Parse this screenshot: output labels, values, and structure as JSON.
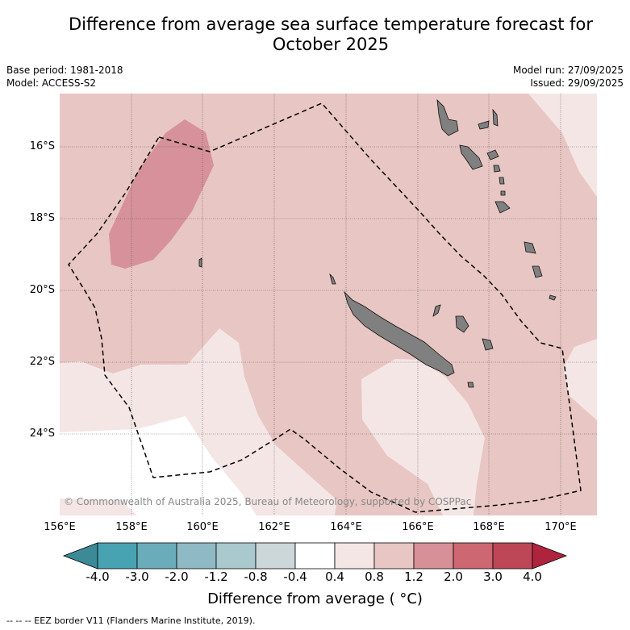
{
  "title_line1": "Difference from average sea surface temperature forecast for",
  "title_line2": "October 2025",
  "base_period": "Base period: 1981-2018",
  "model": "Model: ACCESS-S2",
  "model_run": "Model run: 27/09/2025",
  "issued": "Issued: 29/09/2025",
  "copyright": "© Commonwealth of Australia 2025, Bureau of Meteorology, supported by COSPPac",
  "latitudes": [
    "16°S",
    "18°S",
    "20°S",
    "22°S",
    "24°S"
  ],
  "longitudes": [
    "156°E",
    "158°E",
    "160°E",
    "162°E",
    "164°E",
    "166°E",
    "168°E",
    "170°E"
  ],
  "colorbar": {
    "title": "Difference from average ( °C)",
    "labels": [
      "-4.0",
      "-3.0",
      "-2.0",
      "-1.2",
      "-0.8",
      "-0.4",
      "0.4",
      "0.8",
      "1.2",
      "2.0",
      "3.0",
      "4.0"
    ],
    "colors": [
      "#3d8a97",
      "#47a2b1",
      "#6aacba",
      "#8fbac5",
      "#a9c9ce",
      "#ccd7d9",
      "#ffffff",
      "#f4e6e5",
      "#e8c6c3",
      "#d78f98",
      "#cd6772",
      "#bd4657",
      "#b0233e"
    ]
  },
  "footnote": "--  --  -- EEZ border V11 (Flanders Marine Institute, 2019).",
  "colors": {
    "background_anomaly": "#e8c6c3",
    "light_anomaly": "#f4e6e5",
    "strong_anomaly": "#d6919a",
    "land": "#808080"
  }
}
